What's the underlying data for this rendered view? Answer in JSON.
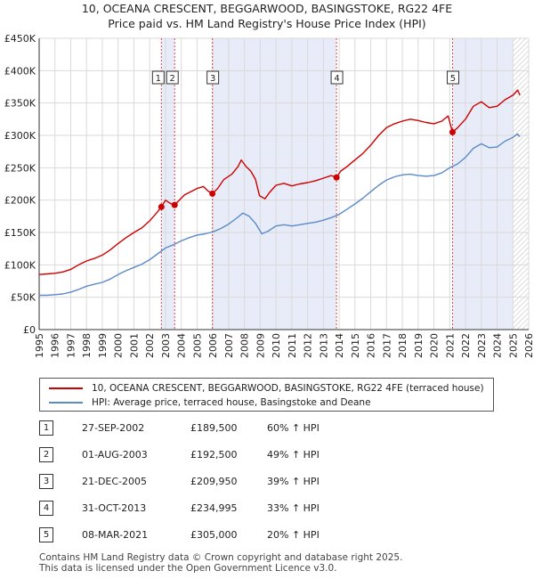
{
  "title": {
    "line1": "10, OCEANA CRESCENT, BEGGARWOOD, BASINGSTOKE, RG22 4FE",
    "line2": "Price paid vs. HM Land Registry's House Price Index (HPI)"
  },
  "colors": {
    "property_line": "#cc0000",
    "hpi_line": "#5b8ac9",
    "shade": "#e8ecf8",
    "vline": "#dd4444",
    "grid": "#d9d9d9"
  },
  "legend": {
    "property_label": "10, OCEANA CRESCENT, BEGGARWOOD, BASINGSTOKE, RG22 4FE (terraced house)",
    "hpi_label": "HPI: Average price, terraced house, Basingstoke and Deane"
  },
  "transactions": [
    {
      "num": "1",
      "date": "27-SEP-2002",
      "price": "£189,500",
      "hpi": "60% ↑ HPI"
    },
    {
      "num": "2",
      "date": "01-AUG-2003",
      "price": "£192,500",
      "hpi": "49% ↑ HPI"
    },
    {
      "num": "3",
      "date": "21-DEC-2005",
      "price": "£209,950",
      "hpi": "39% ↑ HPI"
    },
    {
      "num": "4",
      "date": "31-OCT-2013",
      "price": "£234,995",
      "hpi": "33% ↑ HPI"
    },
    {
      "num": "5",
      "date": "08-MAR-2021",
      "price": "£305,000",
      "hpi": "20% ↑ HPI"
    }
  ],
  "footer": {
    "line1": "Contains HM Land Registry data © Crown copyright and database right 2025.",
    "line2": "This data is licensed under the Open Government Licence v3.0."
  },
  "chart_data": {
    "type": "line",
    "xlim": [
      1995,
      2026
    ],
    "ylim": [
      0,
      450000
    ],
    "x_ticks": [
      "1995",
      "1996",
      "1997",
      "1998",
      "1999",
      "2000",
      "2001",
      "2002",
      "2003",
      "2004",
      "2005",
      "2006",
      "2007",
      "2008",
      "2009",
      "2010",
      "2011",
      "2012",
      "2013",
      "2014",
      "2015",
      "2016",
      "2017",
      "2018",
      "2019",
      "2020",
      "2021",
      "2022",
      "2023",
      "2024",
      "2025",
      "2026"
    ],
    "y_ticks": [
      {
        "value": 0,
        "label": "£0"
      },
      {
        "value": 50000,
        "label": "£50K"
      },
      {
        "value": 100000,
        "label": "£100K"
      },
      {
        "value": 150000,
        "label": "£150K"
      },
      {
        "value": 200000,
        "label": "£200K"
      },
      {
        "value": 250000,
        "label": "£250K"
      },
      {
        "value": 300000,
        "label": "£300K"
      },
      {
        "value": 350000,
        "label": "£350K"
      },
      {
        "value": 400000,
        "label": "£400K"
      },
      {
        "value": 450000,
        "label": "£450K"
      }
    ],
    "shaded_ranges": [
      [
        2002.74,
        2003.58
      ],
      [
        2005.97,
        2013.83
      ],
      [
        2021.18,
        2025.0
      ]
    ],
    "hatched_from": 2025.0,
    "sales": [
      {
        "label": "1",
        "x": 2002.74,
        "y": 189500
      },
      {
        "label": "2",
        "x": 2003.58,
        "y": 192500
      },
      {
        "label": "3",
        "x": 2005.97,
        "y": 209950
      },
      {
        "label": "4",
        "x": 2013.83,
        "y": 234995
      },
      {
        "label": "5",
        "x": 2021.18,
        "y": 305000
      }
    ],
    "series": [
      {
        "name": "10, OCEANA CRESCENT, BEGGARWOOD, BASINGSTOKE, RG22 4FE (terraced house)",
        "points": [
          [
            1995.0,
            85000
          ],
          [
            1995.5,
            86000
          ],
          [
            1996.0,
            87000
          ],
          [
            1996.5,
            89000
          ],
          [
            1997.0,
            93000
          ],
          [
            1997.5,
            100000
          ],
          [
            1998.0,
            106000
          ],
          [
            1998.5,
            110000
          ],
          [
            1999.0,
            115000
          ],
          [
            1999.5,
            123000
          ],
          [
            2000.0,
            133000
          ],
          [
            2000.5,
            142000
          ],
          [
            2001.0,
            150000
          ],
          [
            2001.5,
            157000
          ],
          [
            2002.0,
            168000
          ],
          [
            2002.5,
            182000
          ],
          [
            2002.74,
            189500
          ],
          [
            2003.0,
            200000
          ],
          [
            2003.3,
            195000
          ],
          [
            2003.58,
            192500
          ],
          [
            2003.8,
            198000
          ],
          [
            2004.2,
            208000
          ],
          [
            2004.6,
            213000
          ],
          [
            2005.0,
            218000
          ],
          [
            2005.4,
            221000
          ],
          [
            2005.7,
            214000
          ],
          [
            2005.97,
            209950
          ],
          [
            2006.3,
            218000
          ],
          [
            2006.7,
            232000
          ],
          [
            2007.2,
            240000
          ],
          [
            2007.6,
            252000
          ],
          [
            2007.8,
            262000
          ],
          [
            2008.1,
            252000
          ],
          [
            2008.4,
            245000
          ],
          [
            2008.7,
            232000
          ],
          [
            2008.95,
            207000
          ],
          [
            2009.3,
            202000
          ],
          [
            2009.6,
            212000
          ],
          [
            2010.0,
            223000
          ],
          [
            2010.5,
            226000
          ],
          [
            2011.0,
            222000
          ],
          [
            2011.5,
            225000
          ],
          [
            2012.0,
            227000
          ],
          [
            2012.5,
            230000
          ],
          [
            2013.0,
            234000
          ],
          [
            2013.5,
            238000
          ],
          [
            2013.83,
            234995
          ],
          [
            2014.1,
            245000
          ],
          [
            2014.5,
            252000
          ],
          [
            2015.0,
            262000
          ],
          [
            2015.5,
            272000
          ],
          [
            2016.0,
            285000
          ],
          [
            2016.5,
            300000
          ],
          [
            2017.0,
            312000
          ],
          [
            2017.5,
            318000
          ],
          [
            2018.0,
            322000
          ],
          [
            2018.5,
            325000
          ],
          [
            2019.0,
            323000
          ],
          [
            2019.5,
            320000
          ],
          [
            2020.0,
            318000
          ],
          [
            2020.5,
            322000
          ],
          [
            2020.9,
            330000
          ],
          [
            2021.18,
            305000
          ],
          [
            2021.5,
            312000
          ],
          [
            2022.0,
            325000
          ],
          [
            2022.5,
            345000
          ],
          [
            2023.0,
            352000
          ],
          [
            2023.5,
            343000
          ],
          [
            2024.0,
            345000
          ],
          [
            2024.5,
            355000
          ],
          [
            2025.0,
            362000
          ],
          [
            2025.3,
            370000
          ],
          [
            2025.45,
            362000
          ]
        ]
      },
      {
        "name": "HPI: Average price, terraced house, Basingstoke and Deane",
        "points": [
          [
            1995.0,
            53000
          ],
          [
            1995.5,
            53000
          ],
          [
            1996.0,
            54000
          ],
          [
            1996.5,
            55000
          ],
          [
            1997.0,
            58000
          ],
          [
            1997.5,
            62000
          ],
          [
            1998.0,
            67000
          ],
          [
            1998.5,
            70000
          ],
          [
            1999.0,
            73000
          ],
          [
            1999.5,
            78000
          ],
          [
            2000.0,
            85000
          ],
          [
            2000.5,
            91000
          ],
          [
            2001.0,
            96000
          ],
          [
            2001.5,
            101000
          ],
          [
            2002.0,
            108000
          ],
          [
            2002.5,
            117000
          ],
          [
            2003.0,
            126000
          ],
          [
            2003.5,
            131000
          ],
          [
            2004.0,
            137000
          ],
          [
            2004.5,
            142000
          ],
          [
            2005.0,
            146000
          ],
          [
            2005.5,
            148000
          ],
          [
            2006.0,
            151000
          ],
          [
            2006.5,
            156000
          ],
          [
            2007.0,
            163000
          ],
          [
            2007.5,
            172000
          ],
          [
            2007.9,
            180000
          ],
          [
            2008.3,
            175000
          ],
          [
            2008.7,
            164000
          ],
          [
            2009.1,
            148000
          ],
          [
            2009.5,
            152000
          ],
          [
            2010.0,
            160000
          ],
          [
            2010.5,
            162000
          ],
          [
            2011.0,
            160000
          ],
          [
            2011.5,
            162000
          ],
          [
            2012.0,
            164000
          ],
          [
            2012.5,
            166000
          ],
          [
            2013.0,
            169000
          ],
          [
            2013.5,
            173000
          ],
          [
            2014.0,
            178000
          ],
          [
            2014.5,
            186000
          ],
          [
            2015.0,
            194000
          ],
          [
            2015.5,
            203000
          ],
          [
            2016.0,
            213000
          ],
          [
            2016.5,
            223000
          ],
          [
            2017.0,
            231000
          ],
          [
            2017.5,
            236000
          ],
          [
            2018.0,
            239000
          ],
          [
            2018.5,
            240000
          ],
          [
            2019.0,
            238000
          ],
          [
            2019.5,
            237000
          ],
          [
            2020.0,
            238000
          ],
          [
            2020.5,
            242000
          ],
          [
            2021.0,
            250000
          ],
          [
            2021.5,
            256000
          ],
          [
            2022.0,
            266000
          ],
          [
            2022.5,
            280000
          ],
          [
            2023.0,
            287000
          ],
          [
            2023.5,
            281000
          ],
          [
            2024.0,
            282000
          ],
          [
            2024.5,
            291000
          ],
          [
            2025.0,
            297000
          ],
          [
            2025.3,
            302000
          ],
          [
            2025.45,
            298000
          ]
        ]
      }
    ]
  }
}
